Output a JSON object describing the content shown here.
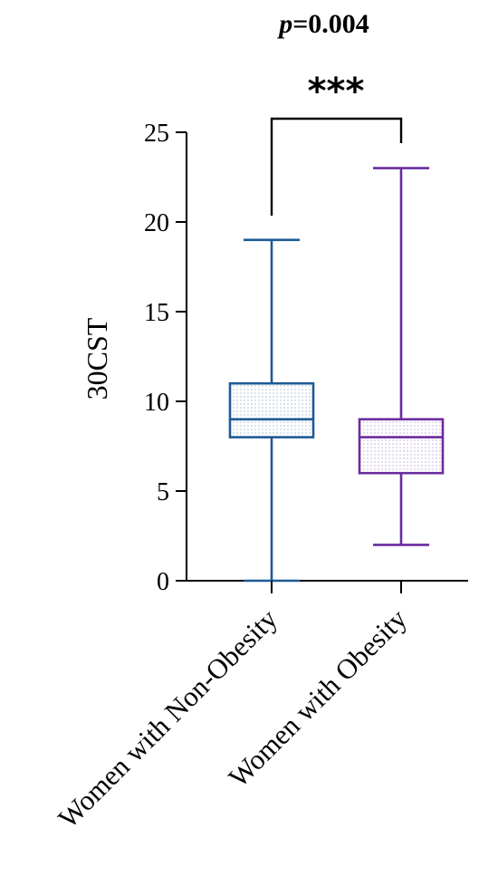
{
  "chart_data": {
    "type": "boxplot",
    "title_p": {
      "italic": "p",
      "rest": "=0.004"
    },
    "significance": "***",
    "ylabel": "30CST",
    "ylim": [
      0,
      25
    ],
    "yticks": [
      "0",
      "5",
      "10",
      "15",
      "20",
      "25"
    ],
    "yticks_values": [
      0,
      5,
      10,
      15,
      20,
      25
    ],
    "categories": [
      "Women with Non-Obesity",
      "Women with Obesity"
    ],
    "series": [
      {
        "category": "Women with Non-Obesity",
        "min": 0,
        "q1": 8,
        "median": 9,
        "q3": 11,
        "max": 19,
        "color": "#1f5a96"
      },
      {
        "category": "Women with Obesity",
        "min": 2,
        "q1": 6,
        "median": 8,
        "q3": 9,
        "max": 23,
        "color": "#6a2ca0"
      }
    ],
    "grid": false
  }
}
